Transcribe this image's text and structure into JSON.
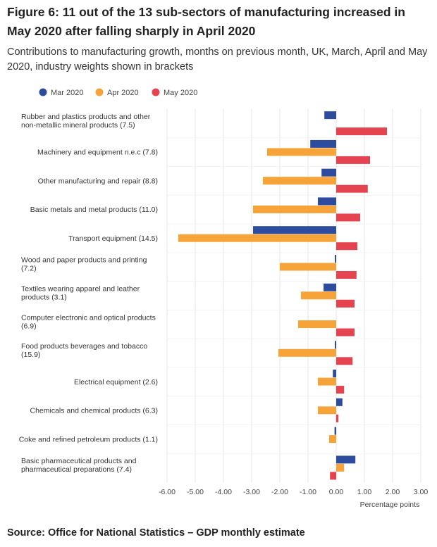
{
  "title": "Figure 6: 11 out of the 13 sub-sectors of manufacturing increased in May 2020 after falling sharply in April 2020",
  "subtitle": "Contributions to manufacturing growth, months on previous month, UK, March, April and May 2020, industry weights shown in brackets",
  "source": "Source: Office for National Statistics – GDP monthly estimate",
  "chart_data": {
    "type": "bar",
    "orientation": "horizontal",
    "xlabel": "Percentage points",
    "ylabel": "",
    "xlim": [
      -6.0,
      3.0
    ],
    "x_ticks": [
      "-6.00",
      "-5.00",
      "-4.00",
      "-3.00",
      "-2.00",
      "-1.00",
      "0.00",
      "1.00",
      "2.00",
      "3.00"
    ],
    "grid": "vertical",
    "legend_position": "top",
    "categories": [
      [
        "Rubber and plastics products and other",
        "non-metallic mineral products (7.5)"
      ],
      [
        "Machinery and equipment n.e.c (7.8)"
      ],
      [
        "Other manufacturing and repair (8.8)"
      ],
      [
        "Basic metals and metal products (11.0)"
      ],
      [
        "Transport equipment (14.5)"
      ],
      [
        "Wood and paper products and printing",
        "(7.2)"
      ],
      [
        "Textiles wearing apparel and leather",
        "products (3.1)"
      ],
      [
        "Computer electronic and optical products",
        "(6.9)"
      ],
      [
        "Food products beverages and tobacco",
        "(15.9)"
      ],
      [
        "Electrical equipment (2.6)"
      ],
      [
        "Chemicals and chemical products (6.3)"
      ],
      [
        "Coke and refined petroleum products (1.1)"
      ],
      [
        "Basic pharmaceutical products and",
        "pharmaceutical preparations (7.4)"
      ]
    ],
    "series": [
      {
        "name": "Mar 2020",
        "color": "#2e4c9e",
        "values": [
          -0.42,
          -0.92,
          -0.52,
          -0.65,
          -2.95,
          -0.05,
          -0.45,
          0.0,
          -0.05,
          -0.12,
          0.22,
          -0.06,
          0.68
        ]
      },
      {
        "name": "Apr 2020",
        "color": "#f6a43a",
        "values": [
          0.0,
          -2.45,
          -2.6,
          -2.95,
          -5.6,
          -2.0,
          -1.25,
          -1.35,
          -2.05,
          -0.65,
          -0.65,
          -0.25,
          0.28
        ]
      },
      {
        "name": "May 2020",
        "color": "#e5434f",
        "values": [
          1.8,
          1.2,
          1.12,
          0.85,
          0.75,
          0.72,
          0.65,
          0.65,
          0.58,
          0.28,
          0.08,
          0.0,
          -0.22
        ]
      }
    ]
  }
}
